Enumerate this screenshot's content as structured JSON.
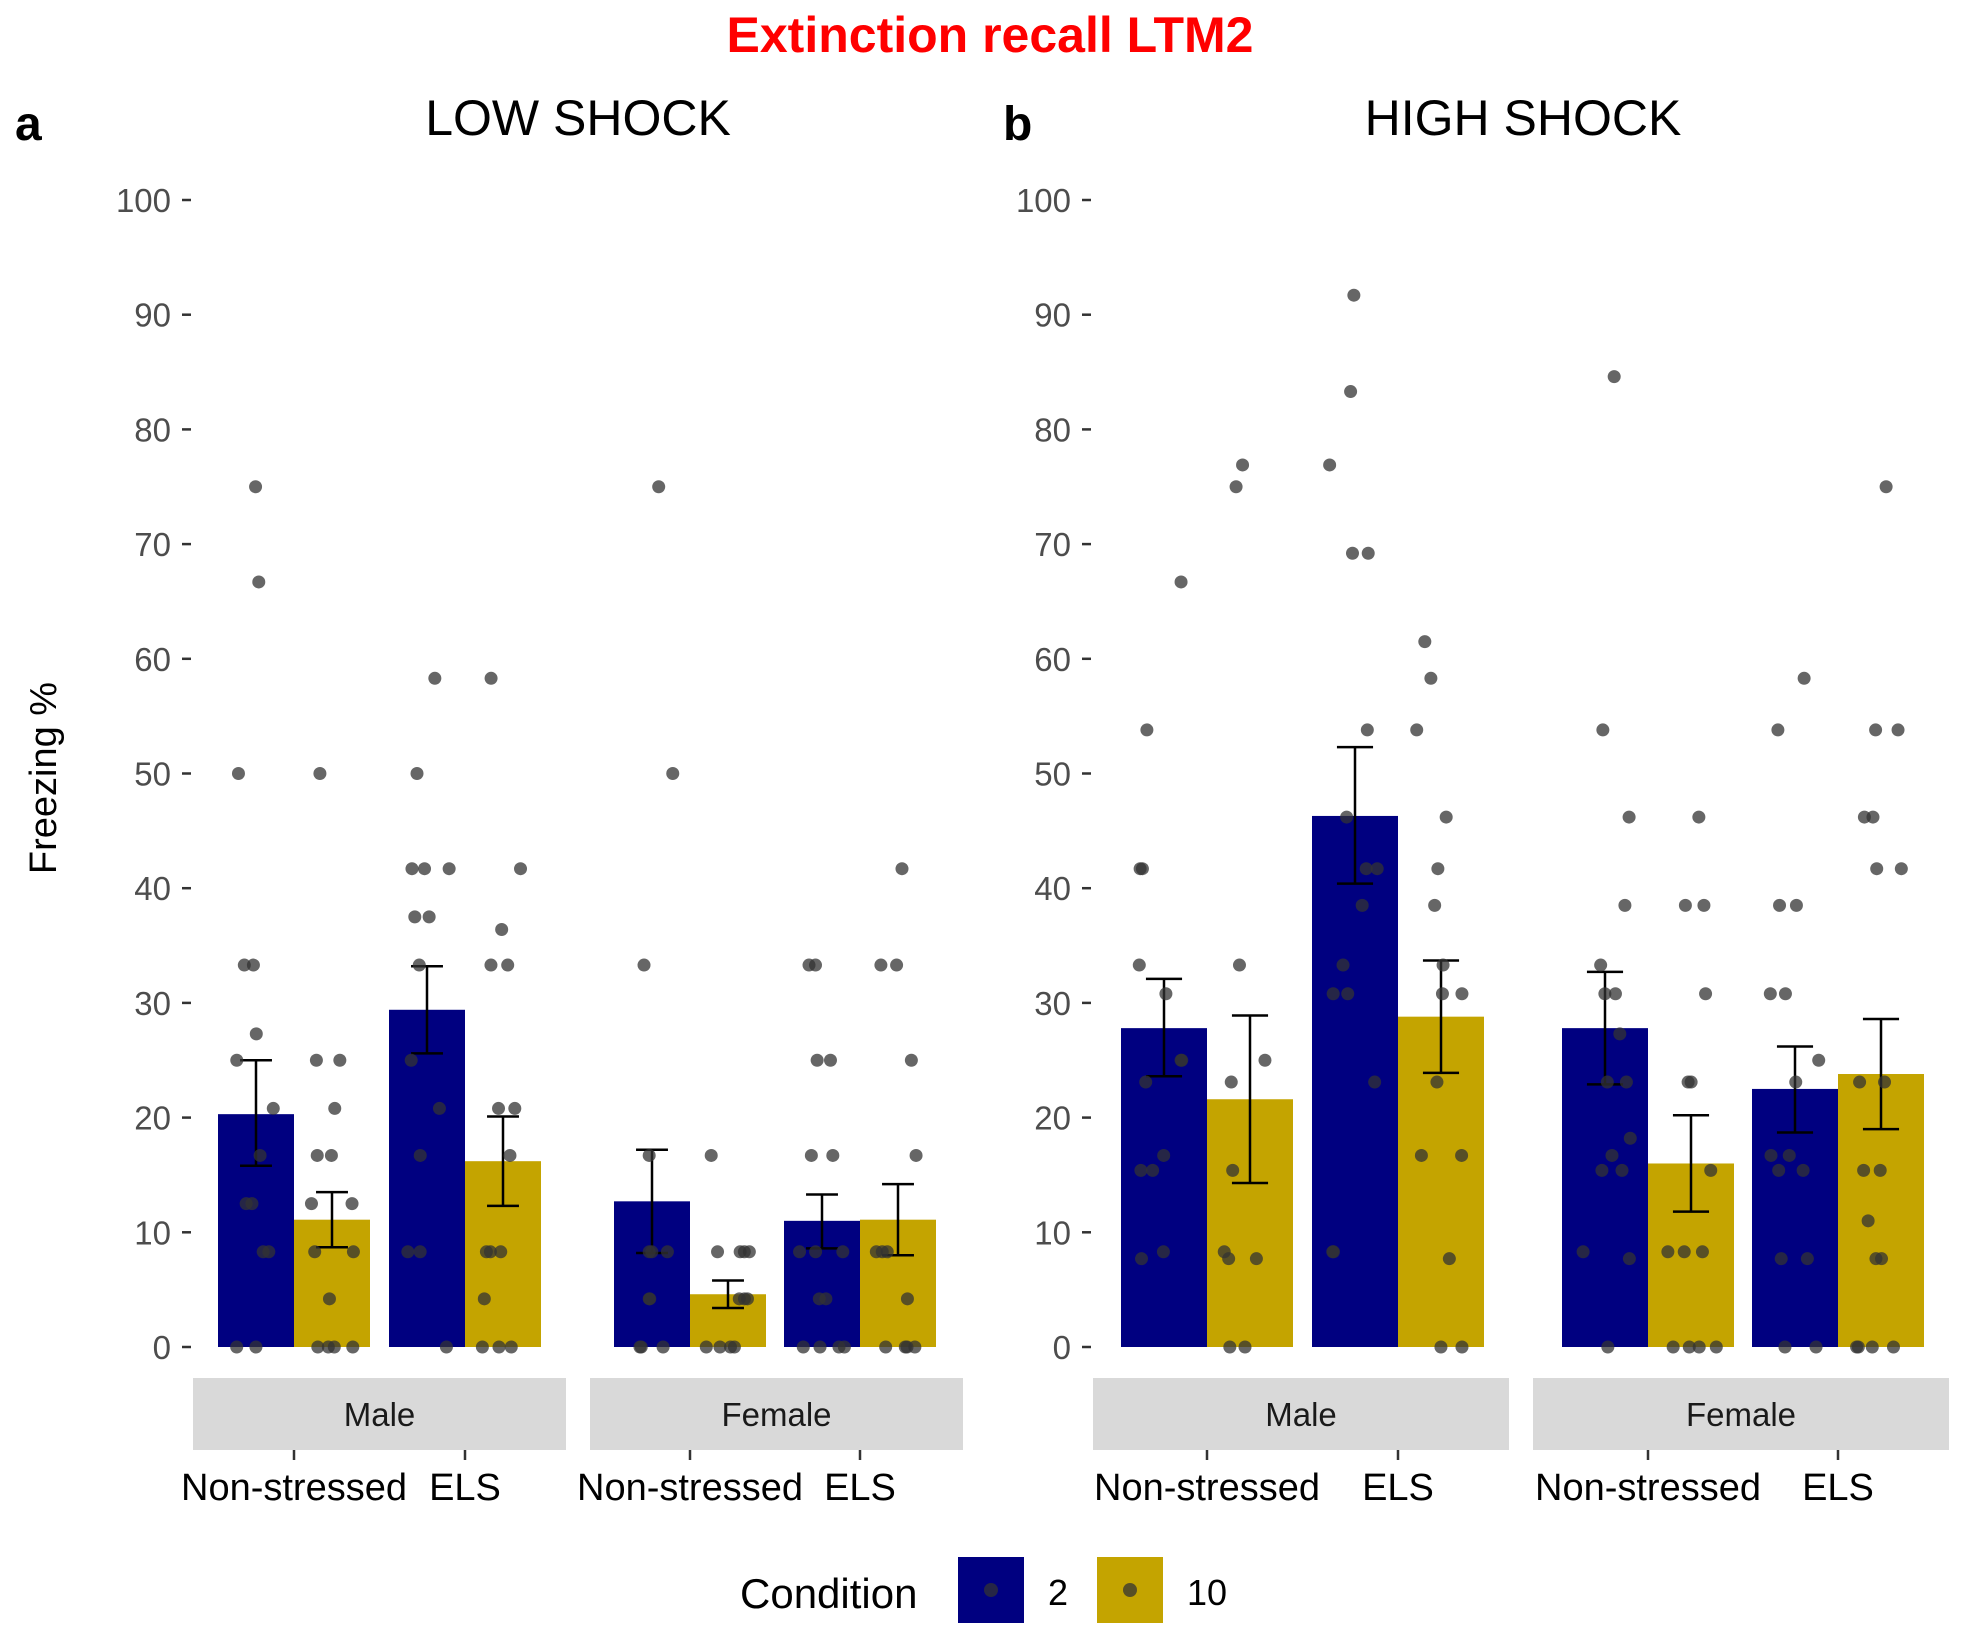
{
  "title": "Extinction recall LTM2",
  "colors": {
    "title": "#FF0000",
    "condition_2": "#000080",
    "condition_10": "#C4A400",
    "strip_bg": "#D9D9D9",
    "point": "#333333",
    "axis_text": "#4D4D4D"
  },
  "y_axis_label": "Freezing %",
  "legend": {
    "title": "Condition",
    "entries": [
      {
        "label": "2",
        "color_key": "condition_2"
      },
      {
        "label": "10",
        "color_key": "condition_10"
      }
    ],
    "position": "bottom"
  },
  "chart_data": [
    {
      "type": "bar",
      "panel_tag": "a",
      "panel_title": "LOW SHOCK",
      "ylim": [
        0,
        100
      ],
      "yticks": [
        0,
        10,
        20,
        30,
        40,
        50,
        60,
        70,
        80,
        90,
        100
      ],
      "facets": [
        {
          "label": "Male",
          "groups": [
            {
              "label": "Non-stressed",
              "bars": [
                {
                  "condition": "2",
                  "value": 20.3,
                  "err": [
                    15.8,
                    25.0
                  ],
                  "points": [
                    75.0,
                    66.7,
                    50.0,
                    33.3,
                    33.3,
                    27.3,
                    25.0,
                    20.8,
                    16.7,
                    12.5,
                    12.5,
                    8.3,
                    8.3,
                    0,
                    0
                  ]
                },
                {
                  "condition": "10",
                  "value": 11.1,
                  "err": [
                    8.7,
                    13.5
                  ],
                  "points": [
                    50.0,
                    25.0,
                    25.0,
                    20.8,
                    16.7,
                    16.7,
                    12.5,
                    12.5,
                    8.3,
                    8.3,
                    4.2,
                    0,
                    0,
                    0,
                    0
                  ]
                }
              ]
            },
            {
              "label": "ELS",
              "bars": [
                {
                  "condition": "2",
                  "value": 29.4,
                  "err": [
                    25.6,
                    33.2
                  ],
                  "points": [
                    58.3,
                    50.0,
                    41.7,
                    41.7,
                    41.7,
                    37.5,
                    37.5,
                    33.3,
                    25.0,
                    20.8,
                    16.7,
                    8.3,
                    8.3,
                    0
                  ]
                },
                {
                  "condition": "10",
                  "value": 16.2,
                  "err": [
                    12.3,
                    20.1
                  ],
                  "points": [
                    58.3,
                    41.7,
                    36.4,
                    33.3,
                    33.3,
                    20.8,
                    20.8,
                    16.7,
                    8.3,
                    8.3,
                    8.3,
                    4.2,
                    0,
                    0,
                    0
                  ]
                }
              ]
            }
          ]
        },
        {
          "label": "Female",
          "groups": [
            {
              "label": "Non-stressed",
              "bars": [
                {
                  "condition": "2",
                  "value": 12.7,
                  "err": [
                    8.2,
                    17.2
                  ],
                  "points": [
                    75.0,
                    50.0,
                    33.3,
                    16.7,
                    8.3,
                    8.3,
                    8.3,
                    4.2,
                    4.2,
                    0,
                    0,
                    0
                  ]
                },
                {
                  "condition": "10",
                  "value": 4.6,
                  "err": [
                    3.4,
                    5.8
                  ],
                  "points": [
                    16.7,
                    8.3,
                    8.3,
                    8.3,
                    8.3,
                    4.2,
                    4.2,
                    4.2,
                    0,
                    0,
                    0,
                    0
                  ]
                }
              ]
            },
            {
              "label": "ELS",
              "bars": [
                {
                  "condition": "2",
                  "value": 11.0,
                  "err": [
                    8.6,
                    13.3
                  ],
                  "points": [
                    33.3,
                    33.3,
                    25.0,
                    25.0,
                    16.7,
                    16.7,
                    8.3,
                    8.3,
                    8.3,
                    4.2,
                    4.2,
                    0,
                    0,
                    0,
                    0
                  ]
                },
                {
                  "condition": "10",
                  "value": 11.1,
                  "err": [
                    8.0,
                    14.2
                  ],
                  "points": [
                    41.7,
                    33.3,
                    33.3,
                    25.0,
                    16.7,
                    8.3,
                    8.3,
                    8.3,
                    4.2,
                    0,
                    0,
                    0,
                    0
                  ]
                }
              ]
            }
          ]
        }
      ]
    },
    {
      "type": "bar",
      "panel_tag": "b",
      "panel_title": "HIGH SHOCK",
      "ylim": [
        0,
        100
      ],
      "yticks": [
        0,
        10,
        20,
        30,
        40,
        50,
        60,
        70,
        80,
        90,
        100
      ],
      "facets": [
        {
          "label": "Male",
          "groups": [
            {
              "label": "Non-stressed",
              "bars": [
                {
                  "condition": "2",
                  "value": 27.8,
                  "err": [
                    23.6,
                    32.1
                  ],
                  "points": [
                    66.7,
                    53.8,
                    41.7,
                    41.7,
                    33.3,
                    30.8,
                    25.0,
                    25.0,
                    23.1,
                    16.7,
                    15.4,
                    15.4,
                    8.3,
                    7.7
                  ]
                },
                {
                  "condition": "10",
                  "value": 21.6,
                  "err": [
                    14.3,
                    28.9
                  ],
                  "points": [
                    76.9,
                    75.0,
                    33.3,
                    25.0,
                    23.1,
                    15.4,
                    8.3,
                    7.7,
                    7.7,
                    0,
                    0
                  ]
                }
              ]
            },
            {
              "label": "ELS",
              "bars": [
                {
                  "condition": "2",
                  "value": 46.3,
                  "err": [
                    40.4,
                    52.3
                  ],
                  "points": [
                    91.7,
                    83.3,
                    76.9,
                    69.2,
                    69.2,
                    53.8,
                    46.2,
                    41.7,
                    41.7,
                    38.5,
                    33.3,
                    30.8,
                    30.8,
                    23.1,
                    8.3,
                    8.3
                  ]
                },
                {
                  "condition": "10",
                  "value": 28.8,
                  "err": [
                    23.9,
                    33.7
                  ],
                  "points": [
                    61.5,
                    58.3,
                    53.8,
                    46.2,
                    41.7,
                    38.5,
                    33.3,
                    30.8,
                    30.8,
                    23.1,
                    16.7,
                    16.7,
                    7.7,
                    0,
                    0
                  ]
                }
              ]
            }
          ]
        },
        {
          "label": "Female",
          "groups": [
            {
              "label": "Non-stressed",
              "bars": [
                {
                  "condition": "2",
                  "value": 27.8,
                  "err": [
                    22.9,
                    32.7
                  ],
                  "points": [
                    84.6,
                    53.8,
                    46.2,
                    38.5,
                    33.3,
                    30.8,
                    30.8,
                    27.3,
                    23.1,
                    23.1,
                    18.2,
                    16.7,
                    15.4,
                    15.4,
                    8.3,
                    7.7,
                    0
                  ]
                },
                {
                  "condition": "10",
                  "value": 16.0,
                  "err": [
                    11.8,
                    20.2
                  ],
                  "points": [
                    46.2,
                    38.5,
                    38.5,
                    30.8,
                    23.1,
                    23.1,
                    15.4,
                    8.3,
                    8.3,
                    8.3,
                    0,
                    0,
                    0,
                    0
                  ]
                }
              ]
            },
            {
              "label": "ELS",
              "bars": [
                {
                  "condition": "2",
                  "value": 22.5,
                  "err": [
                    18.7,
                    26.2
                  ],
                  "points": [
                    58.3,
                    53.8,
                    38.5,
                    38.5,
                    30.8,
                    30.8,
                    25.0,
                    23.1,
                    16.7,
                    16.7,
                    15.4,
                    15.4,
                    7.7,
                    7.7,
                    0,
                    0
                  ]
                },
                {
                  "condition": "10",
                  "value": 23.8,
                  "err": [
                    19.0,
                    28.6
                  ],
                  "points": [
                    75.0,
                    53.8,
                    53.8,
                    46.2,
                    46.2,
                    41.7,
                    41.7,
                    23.1,
                    23.1,
                    15.4,
                    15.4,
                    11.0,
                    7.7,
                    7.7,
                    0,
                    0,
                    0,
                    0
                  ]
                }
              ]
            }
          ]
        }
      ]
    }
  ]
}
